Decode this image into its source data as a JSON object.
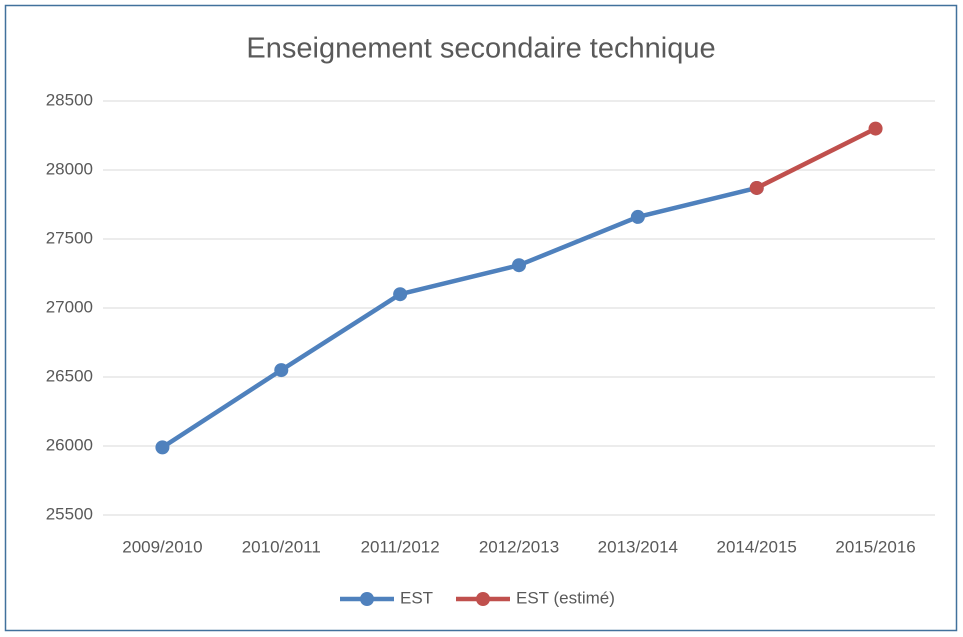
{
  "chart_data": {
    "type": "line",
    "title": "Enseignement secondaire technique",
    "categories": [
      "2009/2010",
      "2010/2011",
      "2011/2012",
      "2012/2013",
      "2013/2014",
      "2014/2015",
      "2015/2016"
    ],
    "series": [
      {
        "name": "EST",
        "color": "#4f81bd",
        "values": [
          25990,
          26550,
          27100,
          27310,
          27660,
          27870,
          null
        ]
      },
      {
        "name": "EST (estimé)",
        "color": "#c0504d",
        "values": [
          null,
          null,
          null,
          null,
          null,
          27870,
          28300
        ]
      }
    ],
    "ylim": [
      25500,
      28500
    ],
    "yticks": [
      25500,
      26000,
      26500,
      27000,
      27500,
      28000,
      28500
    ],
    "grid": true,
    "legend": "bottom"
  }
}
